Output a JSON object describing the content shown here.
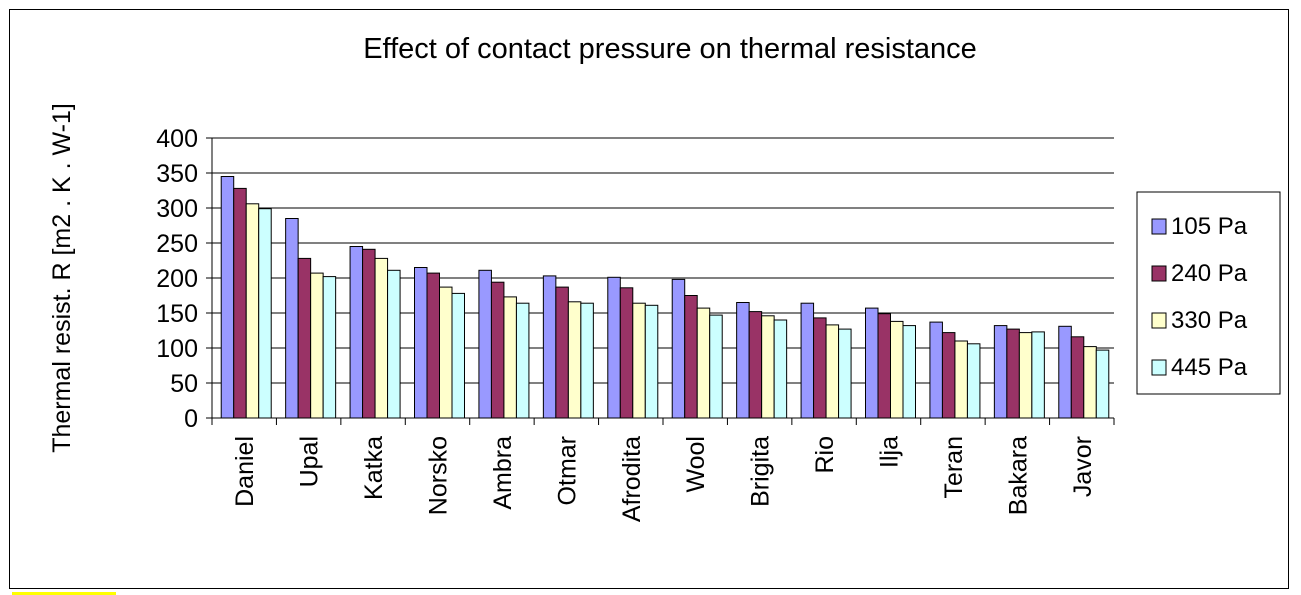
{
  "chart_data": {
    "type": "bar",
    "title": "Effect of contact pressure on thermal resistance",
    "ylabel": "Thermal resist. R [m2 . K . W-1]",
    "xlabel": "",
    "ylim": [
      0,
      400
    ],
    "yticks": [
      0,
      50,
      100,
      150,
      200,
      250,
      300,
      350,
      400
    ],
    "grid": true,
    "legend_position": "right",
    "categories": [
      "Daniel",
      "Upal",
      "Katka",
      "Norsko",
      "Ambra",
      "Otmar",
      "Afrodita",
      "Wool",
      "Brigita",
      "Rio",
      "Ilja",
      "Teran",
      "Bakara",
      "Javor"
    ],
    "series": [
      {
        "name": "105 Pa",
        "color": "#9999ff",
        "values": [
          345,
          285,
          245,
          215,
          211,
          203,
          201,
          198,
          165,
          164,
          157,
          137,
          132,
          131
        ]
      },
      {
        "name": "240 Pa",
        "color": "#993366",
        "values": [
          328,
          228,
          241,
          207,
          194,
          187,
          186,
          175,
          152,
          143,
          149,
          122,
          127,
          116
        ]
      },
      {
        "name": "330 Pa",
        "color": "#ffffcc",
        "values": [
          306,
          207,
          228,
          187,
          173,
          166,
          164,
          157,
          146,
          133,
          138,
          110,
          122,
          102
        ]
      },
      {
        "name": "445 Pa",
        "color": "#ccffff",
        "values": [
          299,
          202,
          211,
          178,
          164,
          164,
          161,
          147,
          140,
          127,
          132,
          106,
          123,
          97
        ]
      }
    ]
  }
}
